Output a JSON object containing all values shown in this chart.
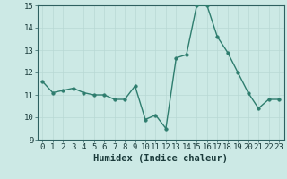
{
  "x": [
    0,
    1,
    2,
    3,
    4,
    5,
    6,
    7,
    8,
    9,
    10,
    11,
    12,
    13,
    14,
    15,
    16,
    17,
    18,
    19,
    20,
    21,
    22,
    23
  ],
  "y": [
    11.6,
    11.1,
    11.2,
    11.3,
    11.1,
    11.0,
    11.0,
    10.8,
    10.8,
    11.4,
    9.9,
    10.1,
    9.5,
    12.65,
    12.8,
    15.0,
    15.0,
    13.6,
    12.9,
    12.0,
    11.1,
    10.4,
    10.8,
    10.8
  ],
  "xlabel": "Humidex (Indice chaleur)",
  "ylim": [
    9,
    15
  ],
  "xlim": [
    -0.5,
    23.5
  ],
  "yticks": [
    9,
    10,
    11,
    12,
    13,
    14,
    15
  ],
  "xticks": [
    0,
    1,
    2,
    3,
    4,
    5,
    6,
    7,
    8,
    9,
    10,
    11,
    12,
    13,
    14,
    15,
    16,
    17,
    18,
    19,
    20,
    21,
    22,
    23
  ],
  "line_color": "#2e7d6e",
  "marker_color": "#2e7d6e",
  "bg_color": "#cce9e5",
  "grid_color": "#b8d8d4",
  "axis_color": "#2e6060",
  "tick_label_color": "#1a3a3a",
  "xlabel_color": "#1a3a3a",
  "xlabel_fontsize": 7.5,
  "tick_fontsize": 6.5,
  "line_width": 1.0,
  "marker_size": 2.5
}
